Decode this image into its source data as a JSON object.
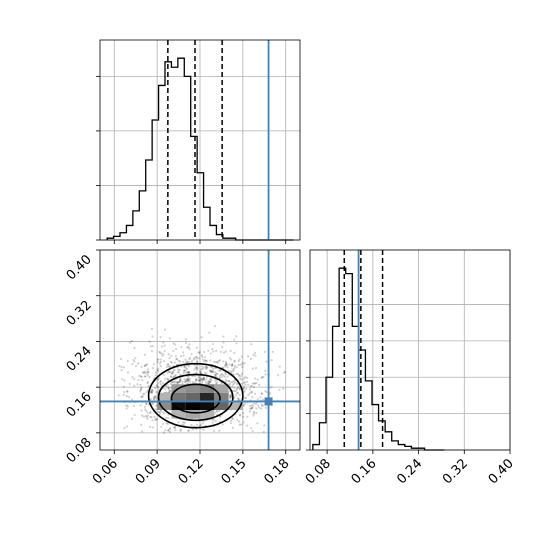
{
  "chart_data": {
    "type": "corner",
    "grid": true,
    "parameters": [
      {
        "name": "",
        "range": [
          0.05,
          0.19
        ],
        "ticks": [
          0.06,
          0.09,
          0.12,
          0.15,
          0.18
        ],
        "tick_labels": [
          "0.06",
          "0.09",
          "0.12",
          "0.15",
          "0.18"
        ]
      },
      {
        "name": "",
        "range": [
          0.05,
          0.4
        ],
        "ticks": [
          0.08,
          0.16,
          0.24,
          0.32,
          0.4
        ],
        "tick_labels": [
          "0.08",
          "0.16",
          "0.24",
          "0.32",
          "0.40"
        ]
      }
    ],
    "truths": [
      0.168,
      0.135
    ],
    "truth_color": "#4682b4",
    "panels": [
      {
        "name": "param1-histogram",
        "type": "histogram",
        "bin_edges": [
          0.055,
          0.0595,
          0.064,
          0.0685,
          0.073,
          0.0775,
          0.082,
          0.0865,
          0.091,
          0.0955,
          0.1,
          0.1045,
          0.109,
          0.1135,
          0.118,
          0.1225,
          0.127,
          0.1315,
          0.136,
          0.1405,
          0.145,
          0.1495,
          0.154,
          0.1585,
          0.163,
          0.1675,
          0.172,
          0.1765,
          0.181,
          0.1855
        ],
        "counts": [
          1,
          2,
          4,
          8,
          16,
          27,
          44,
          66,
          85,
          98,
          95,
          100,
          90,
          57,
          37,
          18,
          8,
          3,
          1,
          1,
          0,
          0,
          0,
          0,
          0,
          0,
          0,
          0,
          0
        ],
        "quantiles": [
          0.0975,
          0.1165,
          0.1355
        ]
      },
      {
        "name": "param2-histogram",
        "type": "histogram",
        "bin_edges": [
          0.055,
          0.0665,
          0.078,
          0.0895,
          0.101,
          0.1125,
          0.124,
          0.1355,
          0.147,
          0.1585,
          0.17,
          0.1815,
          0.193,
          0.2045,
          0.216,
          0.2275,
          0.239,
          0.2505,
          0.262,
          0.2735,
          0.285
        ],
        "counts": [
          3,
          15,
          40,
          68,
          100,
          97,
          68,
          55,
          38,
          25,
          16,
          10,
          5,
          3,
          2,
          1,
          1,
          0,
          0,
          0
        ],
        "quantiles": [
          0.11,
          0.139,
          0.177
        ]
      },
      {
        "name": "param1-vs-param2-2d-density",
        "type": "hist2d",
        "density_cells": [
          {
            "x": [
              0.1,
              0.11
            ],
            "y": [
              0.12,
              0.135
            ],
            "level": 0.95
          },
          {
            "x": [
              0.11,
              0.12
            ],
            "y": [
              0.12,
              0.135
            ],
            "level": 1.0
          },
          {
            "x": [
              0.12,
              0.13
            ],
            "y": [
              0.12,
              0.135
            ],
            "level": 0.95
          },
          {
            "x": [
              0.13,
              0.14
            ],
            "y": [
              0.12,
              0.135
            ],
            "level": 0.6
          },
          {
            "x": [
              0.09,
              0.1
            ],
            "y": [
              0.12,
              0.135
            ],
            "level": 0.45
          },
          {
            "x": [
              0.1,
              0.11
            ],
            "y": [
              0.135,
              0.15
            ],
            "level": 0.55
          },
          {
            "x": [
              0.11,
              0.12
            ],
            "y": [
              0.135,
              0.15
            ],
            "level": 0.6
          },
          {
            "x": [
              0.12,
              0.13
            ],
            "y": [
              0.135,
              0.15
            ],
            "level": 0.85
          },
          {
            "x": [
              0.13,
              0.14
            ],
            "y": [
              0.135,
              0.15
            ],
            "level": 0.5
          },
          {
            "x": [
              0.1,
              0.11
            ],
            "y": [
              0.15,
              0.165
            ],
            "level": 0.4
          },
          {
            "x": [
              0.11,
              0.12
            ],
            "y": [
              0.15,
              0.165
            ],
            "level": 0.45
          },
          {
            "x": [
              0.12,
              0.13
            ],
            "y": [
              0.15,
              0.165
            ],
            "level": 0.5
          },
          {
            "x": [
              0.13,
              0.14
            ],
            "y": [
              0.15,
              0.165
            ],
            "level": 0.35
          },
          {
            "x": [
              0.09,
              0.1
            ],
            "y": [
              0.135,
              0.15
            ],
            "level": 0.3
          },
          {
            "x": [
              0.14,
              0.15
            ],
            "y": [
              0.12,
              0.135
            ],
            "level": 0.3
          },
          {
            "x": [
              0.1,
              0.11
            ],
            "y": [
              0.105,
              0.12
            ],
            "level": 0.3
          },
          {
            "x": [
              0.11,
              0.12
            ],
            "y": [
              0.105,
              0.12
            ],
            "level": 0.35
          },
          {
            "x": [
              0.12,
              0.13
            ],
            "y": [
              0.105,
              0.12
            ],
            "level": 0.3
          }
        ],
        "contours": [
          {
            "center": [
              0.117,
              0.145
            ],
            "radii": [
              0.033,
              0.056
            ]
          },
          {
            "center": [
              0.117,
              0.142
            ],
            "radii": [
              0.026,
              0.04
            ]
          },
          {
            "center": [
              0.117,
              0.14
            ],
            "radii": [
              0.017,
              0.025
            ]
          }
        ],
        "scatter_extent": {
          "x": [
            0.06,
            0.18
          ],
          "y": [
            0.08,
            0.28
          ]
        }
      }
    ]
  }
}
